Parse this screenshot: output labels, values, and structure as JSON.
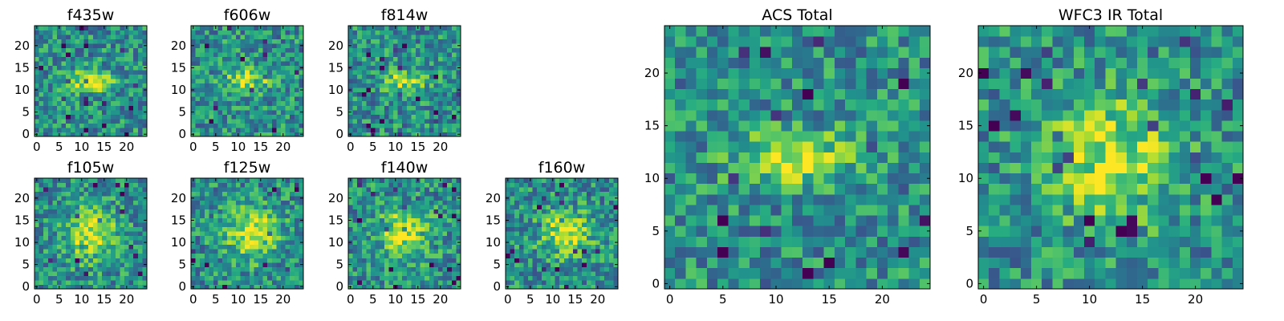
{
  "figure": {
    "colormap": "viridis",
    "background": "#ffffff",
    "axis_color": "#000000"
  },
  "chart_data": [
    {
      "type": "heatmap",
      "title": "f435w",
      "grid_size": [
        25,
        25
      ],
      "xlim": [
        0,
        24
      ],
      "ylim": [
        0,
        24
      ],
      "xticks": [
        0,
        5,
        10,
        15,
        20
      ],
      "yticks": [
        0,
        5,
        10,
        15,
        20
      ],
      "peak": [
        12,
        12
      ],
      "peak_shape": [
        3.5,
        1.8
      ]
    },
    {
      "type": "heatmap",
      "title": "f606w",
      "grid_size": [
        25,
        25
      ],
      "xlim": [
        0,
        24
      ],
      "ylim": [
        0,
        24
      ],
      "xticks": [
        0,
        5,
        10,
        15,
        20
      ],
      "yticks": [
        0,
        5,
        10,
        15,
        20
      ],
      "peak": [
        12,
        12
      ],
      "peak_shape": [
        3.5,
        1.8
      ]
    },
    {
      "type": "heatmap",
      "title": "f814w",
      "grid_size": [
        25,
        25
      ],
      "xlim": [
        0,
        24
      ],
      "ylim": [
        0,
        24
      ],
      "xticks": [
        0,
        5,
        10,
        15,
        20
      ],
      "yticks": [
        0,
        5,
        10,
        15,
        20
      ],
      "peak": [
        12,
        12
      ],
      "peak_shape": [
        3.5,
        1.8
      ]
    },
    {
      "type": "heatmap",
      "title": "f105w",
      "grid_size": [
        25,
        25
      ],
      "xlim": [
        0,
        24
      ],
      "ylim": [
        0,
        24
      ],
      "xticks": [
        0,
        5,
        10,
        15,
        20
      ],
      "yticks": [
        0,
        5,
        10,
        15,
        20
      ],
      "peak": [
        12,
        12
      ],
      "peak_shape": [
        4.0,
        4.0
      ]
    },
    {
      "type": "heatmap",
      "title": "f125w",
      "grid_size": [
        25,
        25
      ],
      "xlim": [
        0,
        24
      ],
      "ylim": [
        0,
        24
      ],
      "xticks": [
        0,
        5,
        10,
        15,
        20
      ],
      "yticks": [
        0,
        5,
        10,
        15,
        20
      ],
      "peak": [
        13,
        12
      ],
      "peak_shape": [
        4.0,
        4.0
      ]
    },
    {
      "type": "heatmap",
      "title": "f140w",
      "grid_size": [
        25,
        25
      ],
      "xlim": [
        0,
        24
      ],
      "ylim": [
        0,
        24
      ],
      "xticks": [
        0,
        5,
        10,
        15,
        20
      ],
      "yticks": [
        0,
        5,
        10,
        15,
        20
      ],
      "peak": [
        12,
        12
      ],
      "peak_shape": [
        4.0,
        4.0
      ]
    },
    {
      "type": "heatmap",
      "title": "f160w",
      "grid_size": [
        25,
        25
      ],
      "xlim": [
        0,
        24
      ],
      "ylim": [
        0,
        24
      ],
      "xticks": [
        0,
        5,
        10,
        15,
        20
      ],
      "yticks": [
        0,
        5,
        10,
        15,
        20
      ],
      "peak": [
        13,
        12
      ],
      "peak_shape": [
        4.0,
        3.5
      ]
    },
    {
      "type": "heatmap",
      "title": "ACS Total",
      "grid_size": [
        25,
        25
      ],
      "xlim": [
        0,
        24
      ],
      "ylim": [
        0,
        24
      ],
      "xticks": [
        0,
        5,
        10,
        15,
        20
      ],
      "yticks": [
        0,
        5,
        10,
        15,
        20
      ],
      "peak": [
        12,
        12
      ],
      "peak_shape": [
        3.8,
        1.8
      ]
    },
    {
      "type": "heatmap",
      "title": "WFC3 IR Total",
      "grid_size": [
        25,
        25
      ],
      "xlim": [
        0,
        24
      ],
      "ylim": [
        0,
        24
      ],
      "xticks": [
        0,
        5,
        10,
        15,
        20
      ],
      "yticks": [
        0,
        5,
        10,
        15,
        20
      ],
      "peak": [
        12,
        12
      ],
      "peak_shape": [
        4.2,
        4.2
      ]
    }
  ]
}
